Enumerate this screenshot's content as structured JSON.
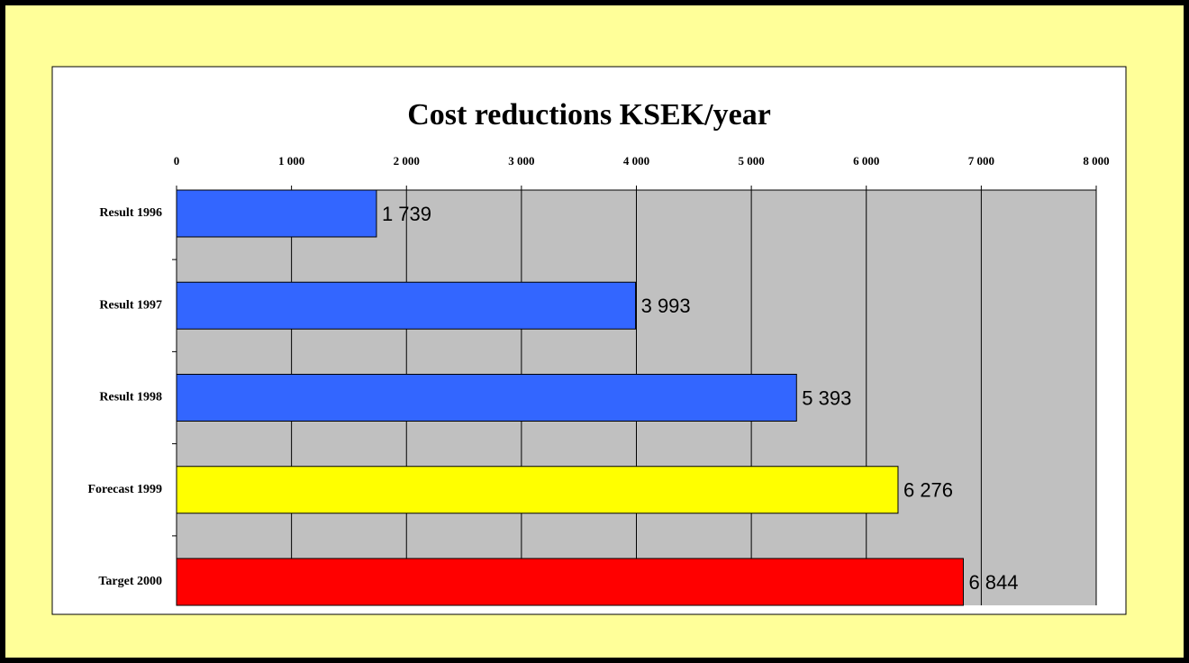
{
  "chart_data": {
    "type": "barh",
    "title": "Cost reductions KSEK/year",
    "categories": [
      "Result 1996",
      "Result 1997",
      "Result 1998",
      "Forecast 1999",
      "Target 2000"
    ],
    "values": [
      1739,
      3993,
      5393,
      6276,
      6844
    ],
    "value_labels": [
      "1 739",
      "3 993",
      "5 393",
      "6 276",
      "6 844"
    ],
    "colors": [
      "#3366ff",
      "#3366ff",
      "#3366ff",
      "#ffff00",
      "#ff0000"
    ],
    "xlim": [
      0,
      8000
    ],
    "xticks": [
      0,
      {
        "value": 1000,
        "label": "1 000"
      },
      {
        "value": 2000,
        "label": "2 000"
      },
      {
        "value": 3000,
        "label": "3 000"
      },
      {
        "value": 4000,
        "label": "4 000"
      },
      {
        "value": 5000,
        "label": "5 000"
      },
      {
        "value": 6000,
        "label": "6 000"
      },
      {
        "value": 7000,
        "label": "7 000"
      },
      {
        "value": 8000,
        "label": "8 000"
      }
    ],
    "grid": true
  }
}
